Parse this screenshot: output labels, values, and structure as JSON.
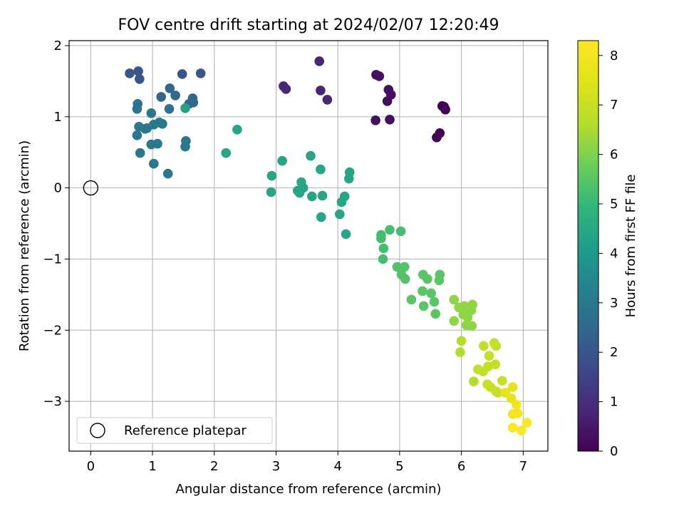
{
  "chart_data": {
    "type": "scatter",
    "title": "FOV centre drift starting at 2024/02/07 12:20:49",
    "xlabel": "Angular distance from reference (arcmin)",
    "ylabel": "Rotation from reference (arcmin)",
    "xlim": [
      -0.35,
      7.4
    ],
    "ylim": [
      -3.7,
      2.07
    ],
    "x_ticks": [
      0,
      1,
      2,
      3,
      4,
      5,
      6,
      7
    ],
    "x_tick_labels": [
      "0",
      "1",
      "2",
      "3",
      "4",
      "5",
      "6",
      "7"
    ],
    "y_ticks": [
      -3,
      -2,
      -1,
      0,
      1,
      2
    ],
    "y_tick_labels": [
      "−3",
      "−2",
      "−1",
      "0",
      "1",
      "2"
    ],
    "grid": true,
    "legend": {
      "placement": "lower-left",
      "entries": [
        "Reference platepar"
      ]
    },
    "reference_point": {
      "x": 0,
      "y": 0,
      "label": "Reference platepar"
    },
    "colorbar": {
      "label": "Hours from first FF file",
      "range": [
        0,
        8.3
      ],
      "ticks": [
        0,
        1,
        2,
        3,
        4,
        5,
        6,
        7,
        8
      ],
      "tick_labels": [
        "0",
        "1",
        "2",
        "3",
        "4",
        "5",
        "6",
        "7",
        "8"
      ],
      "colormap": "viridis"
    },
    "points": [
      [
        3.7,
        1.78,
        0.8
      ],
      [
        3.12,
        1.43,
        0.8
      ],
      [
        3.16,
        1.39,
        0.8
      ],
      [
        3.72,
        1.37,
        0.8
      ],
      [
        3.83,
        1.24,
        0.8
      ],
      [
        4.62,
        1.59,
        0.3
      ],
      [
        4.67,
        1.57,
        0.3
      ],
      [
        4.82,
        1.38,
        0.3
      ],
      [
        4.86,
        1.31,
        0.3
      ],
      [
        4.8,
        1.22,
        0.3
      ],
      [
        4.61,
        0.95,
        0.3
      ],
      [
        4.84,
        0.96,
        0.3
      ],
      [
        5.69,
        1.15,
        0.05
      ],
      [
        5.72,
        1.14,
        0.05
      ],
      [
        5.74,
        1.1,
        0.05
      ],
      [
        5.6,
        0.71,
        0.05
      ],
      [
        5.65,
        0.77,
        0.05
      ],
      [
        0.63,
        1.61,
        2.0
      ],
      [
        0.77,
        1.64,
        2.0
      ],
      [
        0.79,
        1.53,
        2.0
      ],
      [
        1.48,
        1.6,
        2.0
      ],
      [
        1.78,
        1.61,
        2.0
      ],
      [
        1.28,
        1.4,
        2.5
      ],
      [
        1.14,
        1.28,
        2.5
      ],
      [
        1.37,
        1.3,
        2.5
      ],
      [
        1.65,
        1.26,
        2.5
      ],
      [
        1.59,
        1.18,
        2.5
      ],
      [
        1.66,
        1.2,
        2.5
      ],
      [
        0.76,
        1.18,
        2.8
      ],
      [
        0.75,
        1.11,
        2.8
      ],
      [
        1.27,
        1.11,
        2.8
      ],
      [
        1.53,
        1.12,
        4.3
      ],
      [
        0.98,
        1.05,
        3.0
      ],
      [
        1.11,
        0.92,
        3.0
      ],
      [
        1.16,
        0.9,
        3.0
      ],
      [
        1.02,
        0.89,
        3.0
      ],
      [
        0.78,
        0.86,
        3.0
      ],
      [
        0.88,
        0.83,
        3.0
      ],
      [
        0.91,
        0.84,
        3.0
      ],
      [
        0.75,
        0.74,
        3.0
      ],
      [
        1.54,
        0.66,
        3.0
      ],
      [
        1.53,
        0.58,
        3.0
      ],
      [
        0.98,
        0.61,
        3.0
      ],
      [
        1.08,
        0.62,
        3.0
      ],
      [
        0.8,
        0.49,
        3.0
      ],
      [
        1.02,
        0.34,
        3.0
      ],
      [
        1.25,
        0.2,
        3.0
      ],
      [
        2.19,
        0.49,
        4.4
      ],
      [
        2.37,
        0.82,
        4.4
      ],
      [
        3.1,
        0.38,
        4.4
      ],
      [
        3.56,
        0.45,
        4.4
      ],
      [
        3.72,
        0.26,
        4.4
      ],
      [
        4.19,
        0.22,
        4.4
      ],
      [
        4.18,
        0.13,
        4.4
      ],
      [
        2.93,
        0.17,
        4.4
      ],
      [
        2.92,
        -0.06,
        4.4
      ],
      [
        3.41,
        0.08,
        4.4
      ],
      [
        3.35,
        -0.04,
        4.4
      ],
      [
        3.44,
        0.0,
        4.4
      ],
      [
        3.38,
        -0.07,
        4.4
      ],
      [
        3.58,
        -0.12,
        4.4
      ],
      [
        3.75,
        -0.11,
        4.4
      ],
      [
        4.11,
        -0.12,
        4.4
      ],
      [
        4.06,
        -0.2,
        4.4
      ],
      [
        4.03,
        -0.37,
        4.4
      ],
      [
        3.73,
        -0.41,
        4.4
      ],
      [
        4.13,
        -0.65,
        4.4
      ],
      [
        4.7,
        -0.66,
        5.2
      ],
      [
        4.7,
        -0.71,
        5.2
      ],
      [
        4.84,
        -0.59,
        5.2
      ],
      [
        5.02,
        -0.61,
        5.2
      ],
      [
        4.74,
        -0.85,
        5.2
      ],
      [
        4.73,
        -1.0,
        5.2
      ],
      [
        4.96,
        -1.11,
        5.4
      ],
      [
        5.08,
        -1.11,
        5.4
      ],
      [
        5.03,
        -1.22,
        5.4
      ],
      [
        5.09,
        -1.28,
        5.4
      ],
      [
        5.38,
        -1.22,
        5.5
      ],
      [
        5.45,
        -1.28,
        5.5
      ],
      [
        5.65,
        -1.22,
        5.5
      ],
      [
        5.64,
        -1.3,
        5.5
      ],
      [
        5.37,
        -1.45,
        5.5
      ],
      [
        5.51,
        -1.48,
        5.5
      ],
      [
        5.19,
        -1.57,
        5.5
      ],
      [
        5.56,
        -1.6,
        5.5
      ],
      [
        5.39,
        -1.66,
        5.5
      ],
      [
        5.58,
        -1.77,
        5.5
      ],
      [
        5.88,
        -1.57,
        6.2
      ],
      [
        5.96,
        -1.68,
        6.2
      ],
      [
        6.05,
        -1.66,
        6.2
      ],
      [
        6.18,
        -1.64,
        6.2
      ],
      [
        6.16,
        -1.72,
        6.2
      ],
      [
        6.03,
        -1.78,
        6.2
      ],
      [
        6.1,
        -1.82,
        6.2
      ],
      [
        5.88,
        -1.87,
        6.2
      ],
      [
        6.08,
        -1.93,
        6.2
      ],
      [
        6.17,
        -1.94,
        6.2
      ],
      [
        6.0,
        -2.15,
        6.6
      ],
      [
        5.98,
        -2.31,
        6.6
      ],
      [
        6.2,
        -2.72,
        6.6
      ],
      [
        6.36,
        -2.22,
        6.9
      ],
      [
        6.53,
        -2.18,
        6.9
      ],
      [
        6.56,
        -2.22,
        6.9
      ],
      [
        6.45,
        -2.36,
        6.9
      ],
      [
        6.27,
        -2.55,
        6.9
      ],
      [
        6.35,
        -2.58,
        6.9
      ],
      [
        6.43,
        -2.51,
        6.9
      ],
      [
        6.55,
        -2.48,
        6.9
      ],
      [
        6.42,
        -2.76,
        7.0
      ],
      [
        6.47,
        -2.8,
        7.0
      ],
      [
        6.56,
        -2.86,
        7.0
      ],
      [
        6.59,
        -2.88,
        7.0
      ],
      [
        6.66,
        -2.71,
        7.0
      ],
      [
        6.71,
        -2.88,
        7.6
      ],
      [
        6.83,
        -2.8,
        7.6
      ],
      [
        6.81,
        -2.96,
        7.6
      ],
      [
        6.89,
        -3.05,
        8.0
      ],
      [
        6.83,
        -3.18,
        8.0
      ],
      [
        6.91,
        -3.17,
        8.0
      ],
      [
        6.83,
        -3.37,
        8.2
      ],
      [
        6.97,
        -3.41,
        8.2
      ],
      [
        7.06,
        -3.3,
        8.2
      ]
    ]
  }
}
